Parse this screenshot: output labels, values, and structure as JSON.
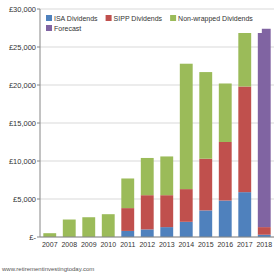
{
  "chart_data": {
    "type": "bar",
    "stacked": true,
    "grid": true,
    "legend": "top",
    "footer": "www.retirementinvestingtoday.com",
    "categories": [
      "2007",
      "2008",
      "2009",
      "2010",
      "2011",
      "2012",
      "2013",
      "2014",
      "2015",
      "2016",
      "2017",
      "2018"
    ],
    "series": [
      {
        "name": "ISA Dividends",
        "color": "#4f81bd",
        "values": [
          0,
          0,
          0,
          0,
          800,
          1000,
          1300,
          2000,
          3500,
          4800,
          5900,
          300
        ]
      },
      {
        "name": "SIPP Dividends",
        "color": "#c0504d",
        "values": [
          0,
          0,
          0,
          0,
          3000,
          4500,
          4200,
          4300,
          6800,
          7700,
          13900,
          1000
        ]
      },
      {
        "name": "Non-wrapped Dividends",
        "color": "#9bbb59",
        "values": [
          500,
          2300,
          2600,
          3000,
          3900,
          4900,
          5100,
          16500,
          11400,
          7700,
          7600,
          0
        ]
      },
      {
        "name": "Forecast",
        "color": "#8064a2",
        "values": [
          0,
          0,
          0,
          0,
          0,
          0,
          0,
          0,
          0,
          0,
          0,
          26100
        ]
      }
    ],
    "ylim": [
      0,
      30000
    ],
    "yticks": [
      {
        "value": 0,
        "label": "£-"
      },
      {
        "value": 5000,
        "label": "£5,000"
      },
      {
        "value": 10000,
        "label": "£10,000"
      },
      {
        "value": 15000,
        "label": "£15,000"
      },
      {
        "value": 20000,
        "label": "£20,000"
      },
      {
        "value": 25000,
        "label": "£25,000"
      },
      {
        "value": 30000,
        "label": "£30,000"
      }
    ]
  }
}
